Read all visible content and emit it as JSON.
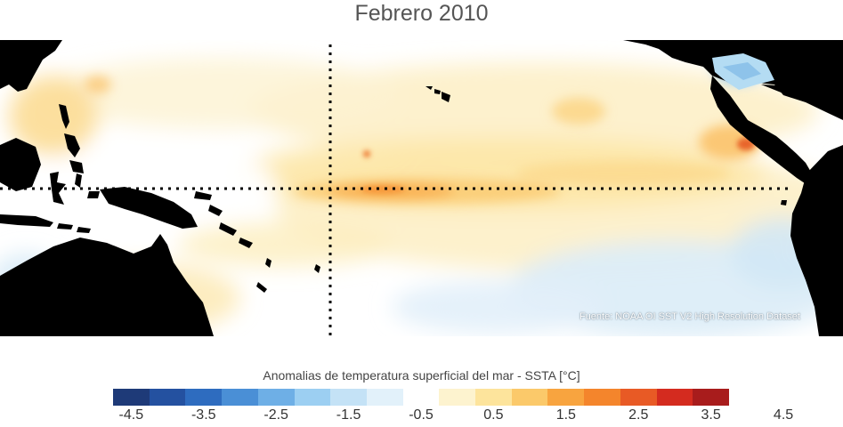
{
  "title": "Febrero 2010",
  "map": {
    "source_note": "Fuente: NOAA OI SST V2 High Resolution Dataset",
    "land_color": "#000000",
    "ocean_neutral_color": "#ffffff"
  },
  "colorbar": {
    "title": "Anomalias de temperatura superficial del mar - SSTA  [°C]",
    "colors": [
      "#1e3a78",
      "#2451a0",
      "#2e6cbf",
      "#4a8fd6",
      "#6eafe6",
      "#9ccff2",
      "#c4e2f6",
      "#e2f1fa",
      "#ffffff",
      "#fdf3cf",
      "#fde49c",
      "#fbc96a",
      "#f8a43f",
      "#f4852c",
      "#e85a25",
      "#d42b1f",
      "#a81c1c"
    ],
    "tick_labels": [
      "-4.5",
      "-3.5",
      "-2.5",
      "-1.5",
      "-0.5",
      "0.5",
      "1.5",
      "2.5",
      "3.5",
      "4.5"
    ]
  }
}
